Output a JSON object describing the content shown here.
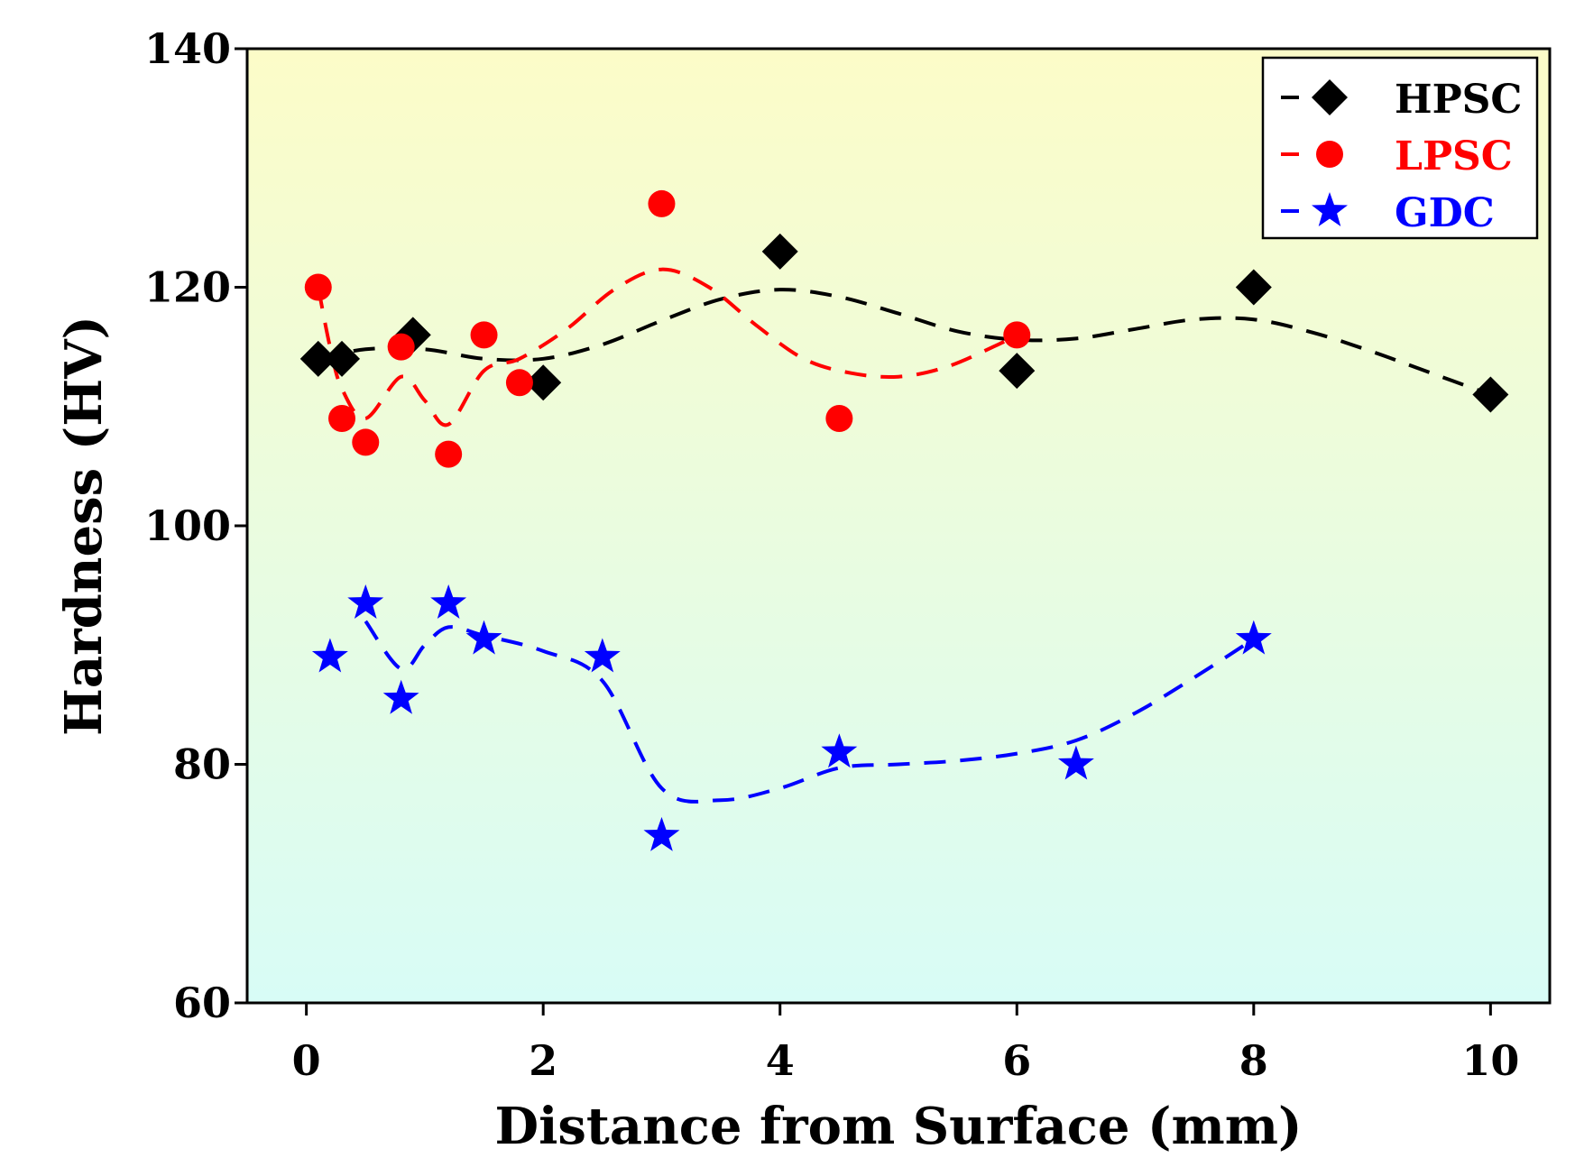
{
  "chart_data": {
    "type": "scatter",
    "title": "",
    "xlabel": "Distance from Surface (mm)",
    "ylabel": "Hardness (HV)",
    "xlim": [
      -0.5,
      10.5
    ],
    "ylim": [
      60,
      140
    ],
    "xticks": [
      0,
      2,
      4,
      6,
      8,
      10
    ],
    "yticks": [
      60,
      80,
      100,
      120,
      140
    ],
    "grid": false,
    "legend_position": "top-right",
    "background": {
      "top_color": "#fcfcc8",
      "bottom_color": "#d8fcf6"
    },
    "series": [
      {
        "name": "HPSC",
        "color": "#000000",
        "marker": "diamond",
        "x": [
          0.1,
          0.3,
          0.9,
          2.0,
          4.0,
          6.0,
          8.0,
          10.0
        ],
        "y": [
          114,
          114,
          116,
          112,
          123,
          113,
          120,
          111
        ],
        "trend": {
          "x": [
            0.1,
            0.5,
            1.0,
            1.5,
            2.0,
            2.5,
            3.0,
            3.5,
            4.0,
            4.5,
            5.0,
            5.5,
            6.0,
            6.5,
            7.0,
            7.5,
            8.0,
            8.5,
            9.0,
            9.5,
            10.0
          ],
          "y": [
            114.0,
            114.8,
            114.8,
            114.0,
            114.0,
            115.2,
            117.2,
            119.0,
            119.8,
            119.2,
            117.8,
            116.3,
            115.6,
            115.7,
            116.5,
            117.3,
            117.3,
            116.2,
            114.6,
            112.8,
            111.0
          ]
        }
      },
      {
        "name": "LPSC",
        "color": "#ff0000",
        "marker": "circle",
        "x": [
          0.1,
          0.3,
          0.5,
          0.8,
          1.2,
          1.5,
          1.8,
          3.0,
          4.5,
          6.0
        ],
        "y": [
          120,
          109,
          107,
          115,
          106,
          116,
          112,
          127,
          109,
          116
        ],
        "trend": {
          "x": [
            0.1,
            0.2,
            0.3,
            0.5,
            0.8,
            1.0,
            1.2,
            1.5,
            1.8,
            2.2,
            2.6,
            3.0,
            3.4,
            3.8,
            4.2,
            4.6,
            5.0,
            5.4,
            5.8,
            6.0
          ],
          "y": [
            120.0,
            115.0,
            111.5,
            109.0,
            112.5,
            110.5,
            108.5,
            113.0,
            114.0,
            116.5,
            119.8,
            121.5,
            120.0,
            116.8,
            114.0,
            112.8,
            112.5,
            113.3,
            115.0,
            116.0
          ]
        }
      },
      {
        "name": "GDC",
        "color": "#0000ff",
        "marker": "star",
        "x": [
          0.2,
          0.5,
          0.8,
          1.2,
          1.5,
          2.5,
          3.0,
          4.5,
          6.5,
          8.0
        ],
        "y": [
          89,
          93.5,
          85.5,
          93.5,
          90.5,
          89,
          74,
          81,
          80,
          90.5
        ],
        "trend": {
          "x": [
            0.5,
            0.8,
            1.0,
            1.2,
            1.5,
            2.0,
            2.5,
            3.0,
            3.5,
            4.0,
            4.5,
            5.0,
            5.5,
            6.0,
            6.5,
            7.0,
            7.5,
            8.0
          ],
          "y": [
            92.0,
            88.0,
            90.0,
            91.5,
            90.8,
            89.5,
            87.0,
            78.0,
            77.0,
            78.0,
            79.7,
            80.0,
            80.3,
            80.9,
            82.0,
            84.3,
            87.3,
            90.5
          ]
        }
      }
    ]
  }
}
